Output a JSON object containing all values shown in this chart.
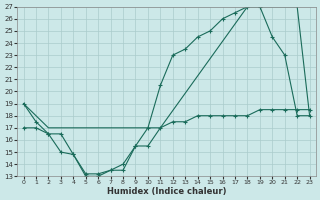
{
  "xlabel": "Humidex (Indice chaleur)",
  "bg_color": "#cce8e8",
  "grid_color": "#aacccc",
  "line_color": "#1a6b5a",
  "xlim": [
    -0.5,
    23.5
  ],
  "ylim": [
    13,
    27
  ],
  "x_ticks": [
    0,
    1,
    2,
    3,
    4,
    5,
    6,
    7,
    8,
    9,
    10,
    11,
    12,
    13,
    14,
    15,
    16,
    17,
    18,
    19,
    20,
    21,
    22,
    23
  ],
  "y_ticks": [
    13,
    14,
    15,
    16,
    17,
    18,
    19,
    20,
    21,
    22,
    23,
    24,
    25,
    26,
    27
  ],
  "line1_x": [
    0,
    1,
    2,
    3,
    4,
    5,
    6,
    7,
    8,
    9,
    10,
    11,
    12,
    13,
    14,
    15,
    16,
    17,
    18,
    19,
    20,
    21,
    22,
    23
  ],
  "line1_y": [
    19,
    17.5,
    16.5,
    16.5,
    14.8,
    13,
    13,
    13.5,
    14,
    15.5,
    17,
    20.5,
    23,
    23.5,
    24.5,
    25,
    26,
    26.5,
    27,
    27,
    24.5,
    23,
    18,
    18
  ],
  "line2_x": [
    0,
    2,
    11,
    18,
    22,
    23
  ],
  "line2_y": [
    19,
    17,
    17,
    27,
    27,
    18
  ],
  "line3_x": [
    0,
    1,
    2,
    3,
    4,
    5,
    6,
    7,
    8,
    9,
    10,
    11,
    12,
    13,
    14,
    15,
    16,
    17,
    18,
    19,
    20,
    21,
    22,
    23
  ],
  "line3_y": [
    17,
    17,
    16.5,
    15,
    14.8,
    13.2,
    13.2,
    13.5,
    13.5,
    15.5,
    15.5,
    17,
    17.5,
    17.5,
    18,
    18,
    18,
    18,
    18,
    18.5,
    18.5,
    18.5,
    18.5,
    18.5
  ]
}
